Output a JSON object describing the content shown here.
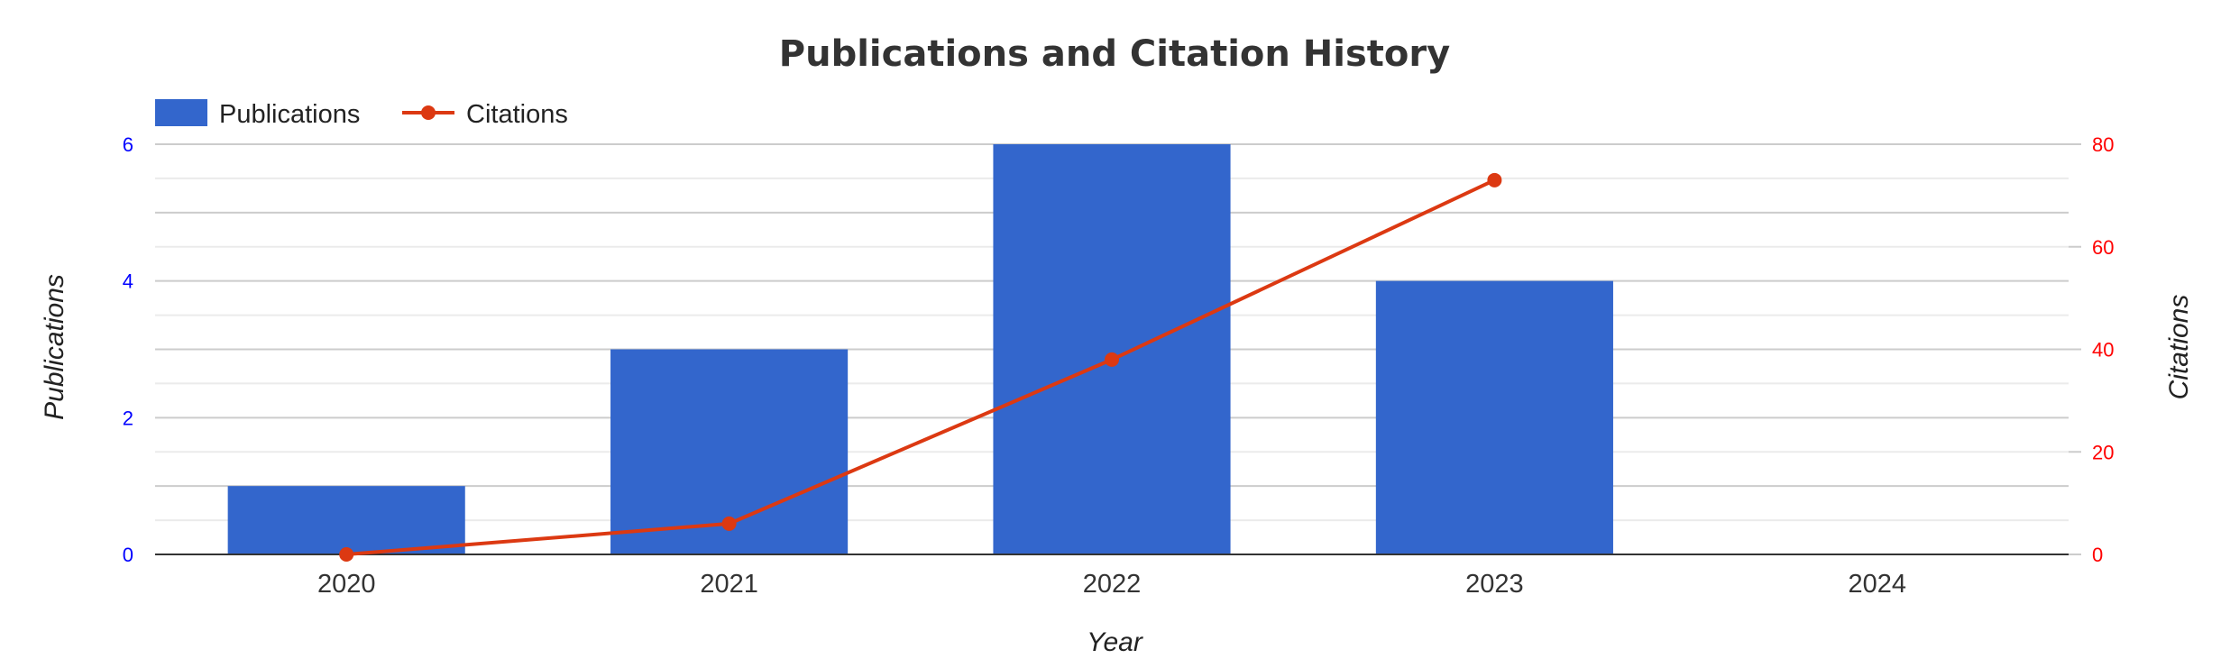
{
  "chart_data": {
    "type": "bar",
    "title": "Publications and Citation History",
    "xlabel": "Year",
    "ylabel": "Publications",
    "y2label": "Citations",
    "categories": [
      "2020",
      "2021",
      "2022",
      "2023",
      "2024"
    ],
    "ylim": [
      0,
      6
    ],
    "y2lim": [
      0,
      80
    ],
    "yticks": [
      "0",
      "2",
      "4",
      "6"
    ],
    "y2ticks": [
      "0",
      "20",
      "40",
      "60",
      "80"
    ],
    "legend_position": "top-left",
    "grid": true,
    "series": [
      {
        "name": "Publications",
        "type": "bar",
        "axis": "left",
        "color": "#3366cc",
        "values": [
          1,
          3,
          6,
          4,
          0
        ]
      },
      {
        "name": "Citations",
        "type": "line",
        "axis": "right",
        "color": "#dc3912",
        "values": [
          0,
          6,
          38,
          73,
          null
        ]
      }
    ],
    "colors": {
      "left_axis": "#0000ff",
      "right_axis": "#ff0000"
    }
  }
}
